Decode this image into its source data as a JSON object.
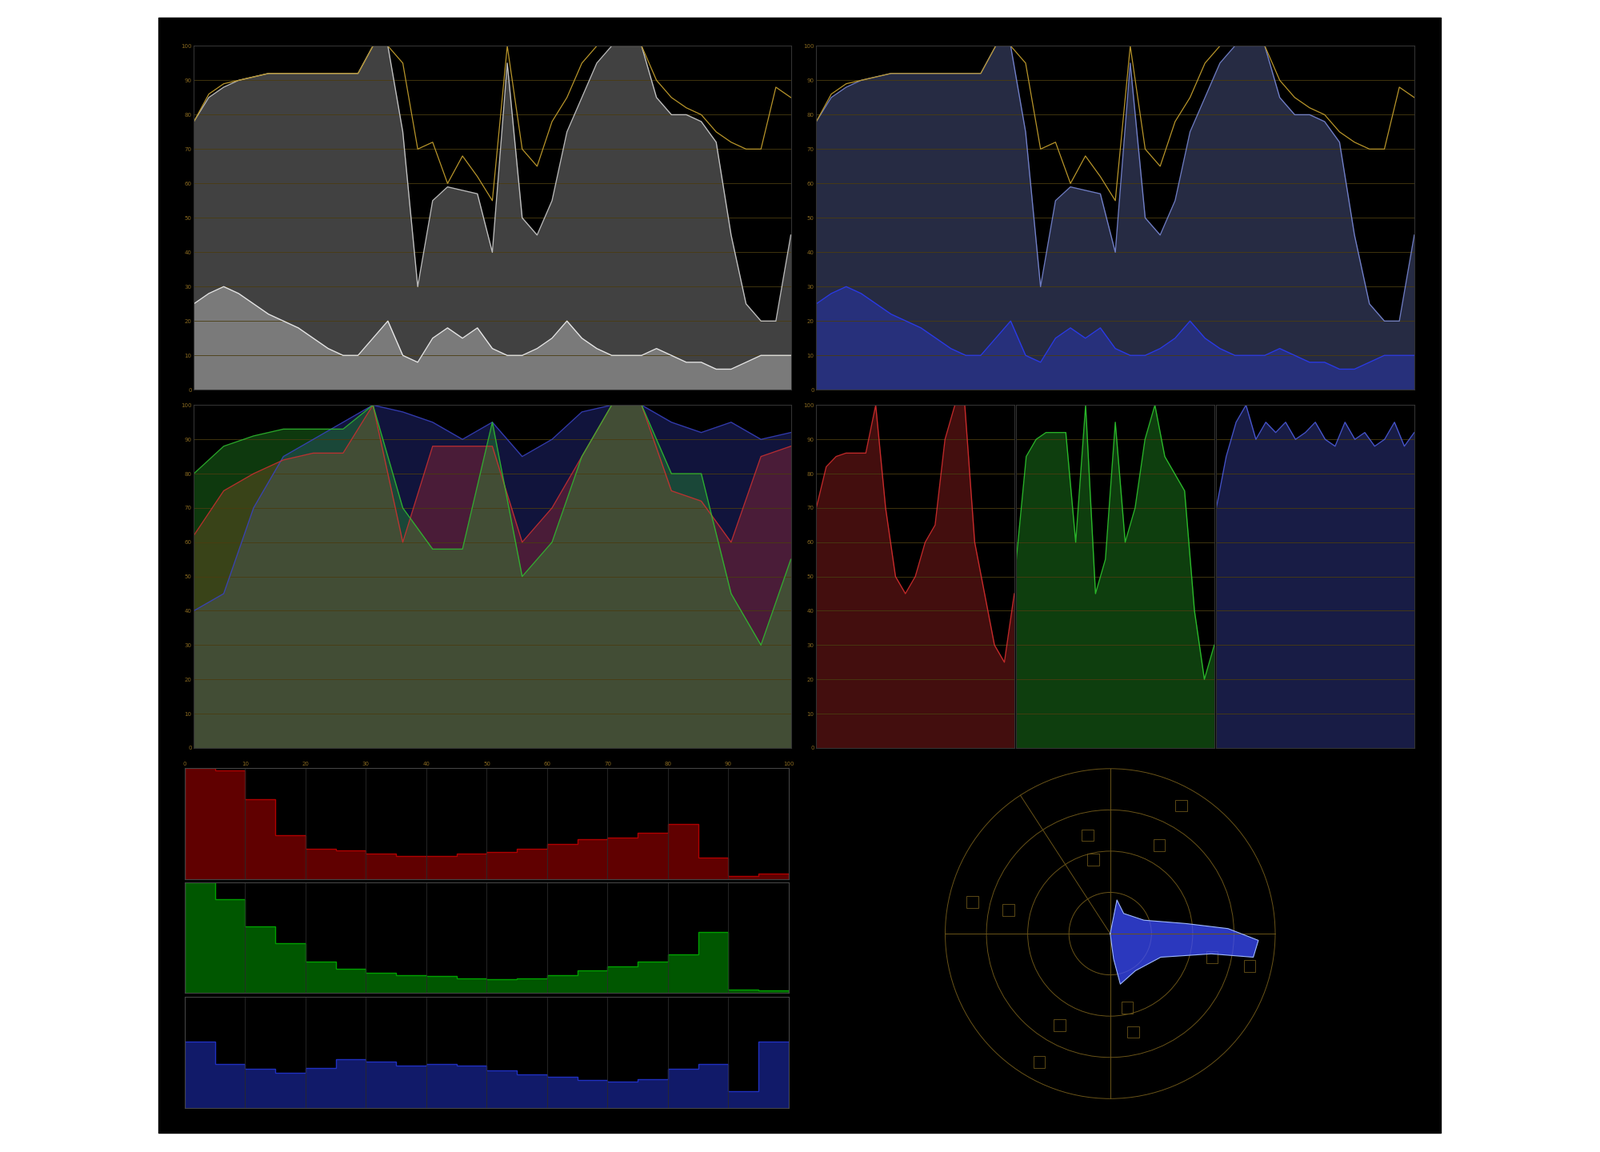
{
  "chart_data": [
    {
      "type": "waveform",
      "xlim": [
        0,
        100
      ],
      "ylim": [
        0,
        100
      ],
      "yticks": [
        0,
        10,
        20,
        30,
        40,
        50,
        60,
        70,
        80,
        90,
        100
      ],
      "grid": true,
      "tick_labels": "y",
      "x": [
        0,
        2.5,
        5,
        7.5,
        10,
        12.5,
        15,
        17.5,
        20,
        22.5,
        25,
        27.5,
        30,
        32.5,
        35,
        37.5,
        40,
        42.5,
        45,
        47.5,
        50,
        52.5,
        55,
        57.5,
        60,
        62.5,
        65,
        67.5,
        70,
        72.5,
        75,
        77.5,
        80,
        82.5,
        85,
        87.5,
        90,
        92.5,
        95,
        97.5,
        100
      ],
      "series": [
        {
          "type": "area",
          "color": "#d8d8d8",
          "values": [
            78,
            85,
            88,
            90,
            91,
            92,
            92,
            92,
            92,
            92,
            92,
            92,
            100,
            100,
            75,
            30,
            55,
            59,
            58,
            57,
            40,
            95,
            50,
            45,
            55,
            75,
            85,
            95,
            100,
            100,
            100,
            85,
            80,
            80,
            78,
            72,
            45,
            25,
            20,
            20,
            45
          ]
        },
        {
          "type": "area",
          "color": "#ffffff",
          "values": [
            25,
            28,
            30,
            28,
            25,
            22,
            20,
            18,
            15,
            12,
            10,
            10,
            15,
            20,
            10,
            8,
            15,
            18,
            15,
            18,
            12,
            10,
            10,
            12,
            15,
            20,
            15,
            12,
            10,
            10,
            10,
            12,
            10,
            8,
            8,
            6,
            6,
            8,
            10,
            10,
            10
          ]
        },
        {
          "type": "line",
          "color": "#b8952a",
          "values": [
            78,
            86,
            89,
            90,
            91,
            92,
            92,
            92,
            92,
            92,
            92,
            92,
            100,
            100,
            95,
            70,
            72,
            60,
            68,
            62,
            55,
            100,
            70,
            65,
            78,
            85,
            95,
            100,
            100,
            100,
            100,
            90,
            85,
            82,
            80,
            75,
            72,
            70,
            70,
            88,
            85
          ]
        }
      ]
    },
    {
      "type": "waveform",
      "xlim": [
        0,
        100
      ],
      "ylim": [
        0,
        100
      ],
      "yticks": [
        0,
        10,
        20,
        30,
        40,
        50,
        60,
        70,
        80,
        90,
        100
      ],
      "grid": true,
      "tick_labels": "y",
      "x": [
        0,
        2.5,
        5,
        7.5,
        10,
        12.5,
        15,
        17.5,
        20,
        22.5,
        25,
        27.5,
        30,
        32.5,
        35,
        37.5,
        40,
        42.5,
        45,
        47.5,
        50,
        52.5,
        55,
        57.5,
        60,
        62.5,
        65,
        67.5,
        70,
        72.5,
        75,
        77.5,
        80,
        82.5,
        85,
        87.5,
        90,
        92.5,
        95,
        97.5,
        100
      ],
      "series": [
        {
          "type": "area",
          "color": "#7f8fe0",
          "values": [
            78,
            85,
            88,
            90,
            91,
            92,
            92,
            92,
            92,
            92,
            92,
            92,
            100,
            100,
            75,
            30,
            55,
            59,
            58,
            57,
            40,
            95,
            50,
            45,
            55,
            75,
            85,
            95,
            100,
            100,
            100,
            85,
            80,
            80,
            78,
            72,
            45,
            25,
            20,
            20,
            45
          ]
        },
        {
          "type": "area",
          "color": "#2a3cff",
          "values": [
            25,
            28,
            30,
            28,
            25,
            22,
            20,
            18,
            15,
            12,
            10,
            10,
            15,
            20,
            10,
            8,
            15,
            18,
            15,
            18,
            12,
            10,
            10,
            12,
            15,
            20,
            15,
            12,
            10,
            10,
            10,
            12,
            10,
            8,
            8,
            6,
            6,
            8,
            10,
            10,
            10
          ]
        },
        {
          "type": "line",
          "color": "#b8952a",
          "values": [
            78,
            86,
            89,
            90,
            91,
            92,
            92,
            92,
            92,
            92,
            92,
            92,
            100,
            100,
            95,
            70,
            72,
            60,
            68,
            62,
            55,
            100,
            70,
            65,
            78,
            85,
            95,
            100,
            100,
            100,
            100,
            90,
            85,
            82,
            80,
            75,
            72,
            70,
            70,
            88,
            85
          ]
        }
      ]
    },
    {
      "type": "waveform",
      "xlim": [
        0,
        100
      ],
      "ylim": [
        0,
        100
      ],
      "yticks": [
        0,
        10,
        20,
        30,
        40,
        50,
        60,
        70,
        80,
        90,
        100
      ],
      "grid": true,
      "tick_labels": "y",
      "x": [
        0,
        5,
        10,
        15,
        20,
        25,
        30,
        35,
        40,
        45,
        50,
        55,
        60,
        65,
        70,
        75,
        80,
        85,
        90,
        95,
        100
      ],
      "series": [
        {
          "type": "area",
          "color": "#3a44c8",
          "values": [
            40,
            45,
            70,
            85,
            90,
            95,
            100,
            98,
            95,
            90,
            95,
            85,
            90,
            98,
            100,
            100,
            95,
            92,
            95,
            90,
            92
          ]
        },
        {
          "type": "area",
          "color": "#d03030",
          "values": [
            62,
            75,
            80,
            84,
            86,
            86,
            100,
            60,
            88,
            88,
            88,
            60,
            70,
            85,
            100,
            100,
            75,
            72,
            60,
            85,
            88
          ]
        },
        {
          "type": "area",
          "color": "#30c030",
          "values": [
            80,
            88,
            91,
            93,
            93,
            93,
            100,
            70,
            58,
            58,
            95,
            50,
            60,
            85,
            100,
            100,
            80,
            80,
            45,
            30,
            55
          ]
        }
      ]
    },
    {
      "type": "waveform",
      "xlim": [
        0,
        100
      ],
      "ylim": [
        0,
        100
      ],
      "yticks": [
        0,
        10,
        20,
        30,
        40,
        50,
        60,
        70,
        80,
        90,
        100
      ],
      "grid": true,
      "tick_labels": "y",
      "x": [
        0,
        5,
        10,
        15,
        20,
        25,
        30,
        35,
        40,
        45,
        50,
        55,
        60,
        65,
        70,
        75,
        80,
        85,
        90,
        95,
        100
      ],
      "series": [
        {
          "type": "area",
          "color": "#e03030",
          "values": [
            70,
            82,
            85,
            86,
            86,
            86,
            100,
            70,
            50,
            45,
            50,
            60,
            65,
            90,
            100,
            100,
            60,
            45,
            30,
            25,
            45
          ]
        }
      ]
    },
    {
      "type": "waveform",
      "xlim": [
        0,
        100
      ],
      "ylim": [
        0,
        100
      ],
      "yticks": [
        0,
        10,
        20,
        30,
        40,
        50,
        60,
        70,
        80,
        90,
        100
      ],
      "grid": true,
      "tick_labels": false,
      "x": [
        0,
        5,
        10,
        15,
        20,
        25,
        30,
        35,
        40,
        45,
        50,
        55,
        60,
        65,
        70,
        75,
        80,
        85,
        90,
        95,
        100
      ],
      "series": [
        {
          "type": "area",
          "color": "#30d030",
          "values": [
            55,
            85,
            90,
            92,
            92,
            92,
            60,
            100,
            45,
            55,
            95,
            60,
            70,
            90,
            100,
            85,
            80,
            75,
            40,
            20,
            30
          ]
        }
      ]
    },
    {
      "type": "waveform",
      "xlim": [
        0,
        100
      ],
      "ylim": [
        0,
        100
      ],
      "yticks": [
        0,
        10,
        20,
        30,
        40,
        50,
        60,
        70,
        80,
        90,
        100
      ],
      "grid": true,
      "tick_labels": false,
      "x": [
        0,
        5,
        10,
        15,
        20,
        25,
        30,
        35,
        40,
        45,
        50,
        55,
        60,
        65,
        70,
        75,
        80,
        85,
        90,
        95,
        100
      ],
      "series": [
        {
          "type": "area",
          "color": "#5060e8",
          "values": [
            70,
            85,
            95,
            100,
            90,
            95,
            92,
            95,
            90,
            92,
            95,
            90,
            88,
            95,
            90,
            92,
            88,
            90,
            95,
            88,
            92
          ]
        }
      ]
    },
    {
      "type": "histogram",
      "xlim": [
        0,
        100
      ],
      "ylim": [
        0,
        100
      ],
      "xticks": [
        0,
        10,
        20,
        30,
        40,
        50,
        60,
        70,
        80,
        90,
        100
      ],
      "grid": true,
      "tick_labels": "x",
      "bins": [
        0,
        5,
        10,
        15,
        20,
        25,
        30,
        35,
        40,
        45,
        50,
        55,
        60,
        65,
        70,
        75,
        80,
        85,
        90,
        95,
        100
      ],
      "series": [
        {
          "color": "#b00000",
          "counts": [
            100,
            98,
            72,
            40,
            28,
            26,
            23,
            21,
            21,
            23,
            25,
            28,
            32,
            36,
            38,
            42,
            50,
            20,
            3,
            5
          ]
        },
        {
          "color": "#00a000",
          "counts": [
            100,
            85,
            60,
            45,
            28,
            22,
            18,
            16,
            15,
            13,
            12,
            13,
            16,
            20,
            24,
            28,
            35,
            55,
            3,
            2
          ]
        },
        {
          "color": "#2030c0",
          "counts": [
            60,
            40,
            35,
            32,
            36,
            44,
            42,
            38,
            40,
            38,
            34,
            30,
            28,
            25,
            24,
            26,
            35,
            40,
            15,
            60
          ]
        }
      ]
    },
    {
      "type": "vectorscope",
      "xlim": [
        -100,
        100
      ],
      "ylim": [
        -100,
        100
      ],
      "tick_labels": false,
      "color": "#3a4cff",
      "x": [
        0,
        4,
        8,
        20,
        45,
        70,
        88,
        85,
        60,
        30,
        15,
        6,
        2,
        0
      ],
      "y": [
        0,
        20,
        12,
        8,
        6,
        3,
        -4,
        -14,
        -12,
        -14,
        -22,
        -30,
        -15,
        0
      ]
    }
  ]
}
